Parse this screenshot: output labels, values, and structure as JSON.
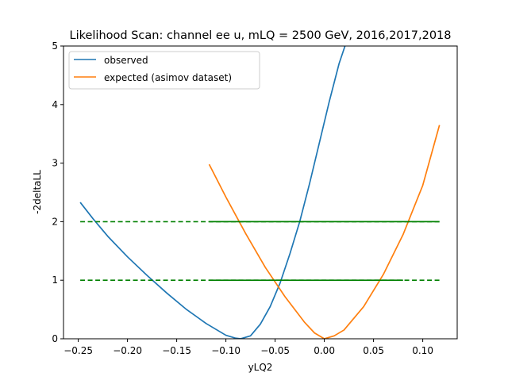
{
  "chart_data": {
    "type": "line",
    "title": "Likelihood Scan: channel ee u, mLQ = 2500 GeV, 2016,2017,2018",
    "xlabel": "yLQ2",
    "ylabel": "-2deltaLL",
    "xlim": [
      -0.265,
      0.135
    ],
    "ylim": [
      0,
      5
    ],
    "xticks": [
      -0.25,
      -0.2,
      -0.15,
      -0.1,
      -0.05,
      0.0,
      0.05,
      0.1
    ],
    "xtick_labels": [
      "−0.25",
      "−0.20",
      "−0.15",
      "−0.10",
      "−0.05",
      "0.00",
      "0.05",
      "0.10"
    ],
    "yticks": [
      0,
      1,
      2,
      3,
      4,
      5
    ],
    "ytick_labels": [
      "0",
      "1",
      "2",
      "3",
      "4",
      "5"
    ],
    "grid": false,
    "legend_position": "top-left",
    "series": [
      {
        "name": "observed",
        "color": "#1f77b4",
        "style": "solid",
        "x": [
          -0.248,
          -0.235,
          -0.22,
          -0.2,
          -0.18,
          -0.16,
          -0.14,
          -0.12,
          -0.1,
          -0.09,
          -0.085,
          -0.075,
          -0.065,
          -0.055,
          -0.045,
          -0.035,
          -0.025,
          -0.015,
          -0.005,
          0.005,
          0.015,
          0.022
        ],
        "y": [
          2.33,
          2.05,
          1.75,
          1.4,
          1.08,
          0.78,
          0.5,
          0.26,
          0.06,
          0.01,
          0.0,
          0.05,
          0.25,
          0.55,
          0.95,
          1.45,
          2.0,
          2.65,
          3.35,
          4.05,
          4.7,
          5.05
        ]
      },
      {
        "name": "expected (asimov dataset)",
        "color": "#ff7f0e",
        "style": "solid",
        "x": [
          -0.117,
          -0.1,
          -0.08,
          -0.06,
          -0.04,
          -0.02,
          -0.01,
          0.0,
          0.01,
          0.02,
          0.04,
          0.06,
          0.08,
          0.1,
          0.117
        ],
        "y": [
          2.98,
          2.42,
          1.8,
          1.22,
          0.72,
          0.28,
          0.1,
          0.0,
          0.05,
          0.15,
          0.55,
          1.1,
          1.78,
          2.62,
          3.65
        ]
      },
      {
        "name": "",
        "color": "#008000",
        "style": "dashed",
        "x": [
          -0.248,
          0.117
        ],
        "y": [
          1,
          1
        ]
      },
      {
        "name": "",
        "color": "#008000",
        "style": "dashed",
        "x": [
          -0.248,
          0.117
        ],
        "y": [
          2,
          2
        ]
      },
      {
        "name": "",
        "color": "#008000",
        "style": "solid",
        "x": [
          -0.117,
          0.117
        ],
        "y": [
          2,
          2
        ]
      },
      {
        "name": "",
        "color": "#008000",
        "style": "solid",
        "x": [
          -0.117,
          0.08
        ],
        "y": [
          1,
          1
        ]
      }
    ]
  }
}
